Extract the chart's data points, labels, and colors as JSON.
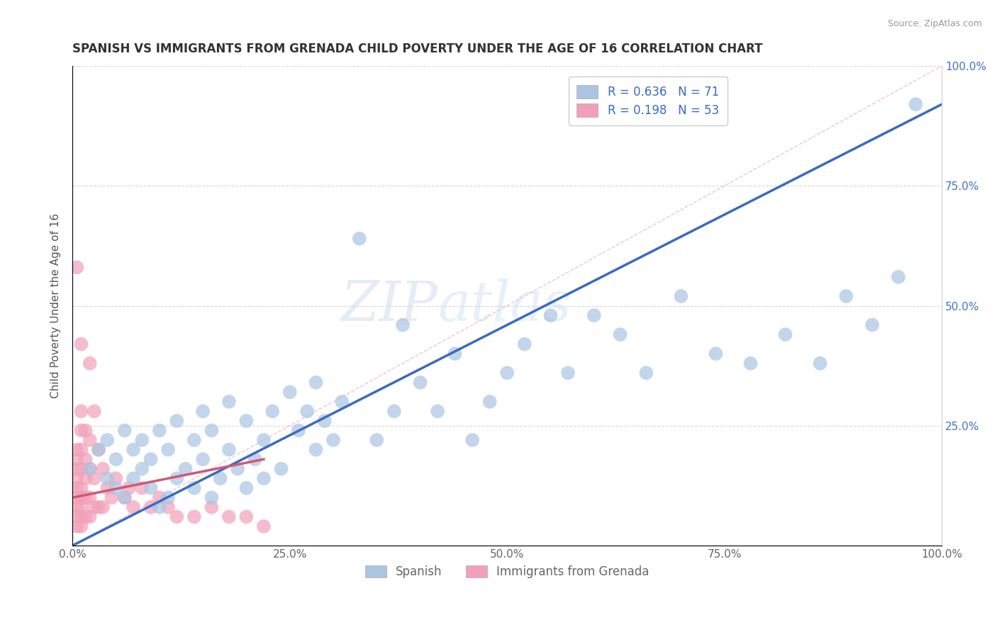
{
  "title": "SPANISH VS IMMIGRANTS FROM GRENADA CHILD POVERTY UNDER THE AGE OF 16 CORRELATION CHART",
  "source": "Source: ZipAtlas.com",
  "ylabel": "Child Poverty Under the Age of 16",
  "xlim": [
    0.0,
    1.0
  ],
  "ylim": [
    0.0,
    1.0
  ],
  "xtick_labels": [
    "0.0%",
    "25.0%",
    "50.0%",
    "75.0%",
    "100.0%"
  ],
  "xtick_vals": [
    0.0,
    0.25,
    0.5,
    0.75,
    1.0
  ],
  "ytick_labels": [
    "100.0%",
    "75.0%",
    "50.0%",
    "25.0%",
    ""
  ],
  "ytick_vals": [
    1.0,
    0.75,
    0.5,
    0.25,
    0.0
  ],
  "watermark_zip": "ZIP",
  "watermark_atlas": "atlas",
  "legend_blue_label_r": "R = 0.636",
  "legend_blue_label_n": "N = 71",
  "legend_pink_label_r": "R = 0.198",
  "legend_pink_label_n": "N = 53",
  "blue_color": "#aac4e2",
  "pink_color": "#f2a0b8",
  "blue_line_color": "#3a6bbf",
  "pink_line_color": "#d05878",
  "diag_line_color": "#e8b8c8",
  "grid_color": "#d8d8d8",
  "background_color": "#ffffff",
  "blue_scatter_x": [
    0.02,
    0.03,
    0.04,
    0.04,
    0.05,
    0.05,
    0.06,
    0.06,
    0.07,
    0.07,
    0.08,
    0.08,
    0.09,
    0.09,
    0.1,
    0.1,
    0.11,
    0.11,
    0.12,
    0.12,
    0.13,
    0.14,
    0.14,
    0.15,
    0.15,
    0.16,
    0.16,
    0.17,
    0.18,
    0.18,
    0.19,
    0.2,
    0.2,
    0.21,
    0.22,
    0.22,
    0.23,
    0.24,
    0.25,
    0.26,
    0.27,
    0.28,
    0.28,
    0.29,
    0.3,
    0.31,
    0.33,
    0.35,
    0.37,
    0.38,
    0.4,
    0.42,
    0.44,
    0.46,
    0.48,
    0.5,
    0.52,
    0.55,
    0.57,
    0.6,
    0.63,
    0.66,
    0.7,
    0.74,
    0.78,
    0.82,
    0.86,
    0.89,
    0.92,
    0.95,
    0.97
  ],
  "blue_scatter_y": [
    0.16,
    0.2,
    0.14,
    0.22,
    0.12,
    0.18,
    0.1,
    0.24,
    0.14,
    0.2,
    0.16,
    0.22,
    0.12,
    0.18,
    0.08,
    0.24,
    0.1,
    0.2,
    0.14,
    0.26,
    0.16,
    0.12,
    0.22,
    0.28,
    0.18,
    0.1,
    0.24,
    0.14,
    0.2,
    0.3,
    0.16,
    0.12,
    0.26,
    0.18,
    0.22,
    0.14,
    0.28,
    0.16,
    0.32,
    0.24,
    0.28,
    0.2,
    0.34,
    0.26,
    0.22,
    0.3,
    0.64,
    0.22,
    0.28,
    0.46,
    0.34,
    0.28,
    0.4,
    0.22,
    0.3,
    0.36,
    0.42,
    0.48,
    0.36,
    0.48,
    0.44,
    0.36,
    0.52,
    0.4,
    0.38,
    0.44,
    0.38,
    0.52,
    0.46,
    0.56,
    0.92
  ],
  "pink_scatter_x": [
    0.005,
    0.005,
    0.005,
    0.005,
    0.005,
    0.005,
    0.005,
    0.005,
    0.005,
    0.005,
    0.01,
    0.01,
    0.01,
    0.01,
    0.01,
    0.01,
    0.01,
    0.01,
    0.01,
    0.01,
    0.015,
    0.015,
    0.015,
    0.015,
    0.015,
    0.02,
    0.02,
    0.02,
    0.02,
    0.02,
    0.025,
    0.025,
    0.025,
    0.03,
    0.03,
    0.035,
    0.035,
    0.04,
    0.045,
    0.05,
    0.06,
    0.065,
    0.07,
    0.08,
    0.09,
    0.1,
    0.11,
    0.12,
    0.14,
    0.16,
    0.18,
    0.2,
    0.22
  ],
  "pink_scatter_y": [
    0.04,
    0.06,
    0.08,
    0.1,
    0.12,
    0.14,
    0.16,
    0.18,
    0.2,
    0.58,
    0.04,
    0.06,
    0.08,
    0.1,
    0.12,
    0.16,
    0.2,
    0.24,
    0.28,
    0.42,
    0.06,
    0.1,
    0.14,
    0.18,
    0.24,
    0.06,
    0.1,
    0.16,
    0.22,
    0.38,
    0.08,
    0.14,
    0.28,
    0.08,
    0.2,
    0.08,
    0.16,
    0.12,
    0.1,
    0.14,
    0.1,
    0.12,
    0.08,
    0.12,
    0.08,
    0.1,
    0.08,
    0.06,
    0.06,
    0.08,
    0.06,
    0.06,
    0.04
  ],
  "blue_line_x0": 0.0,
  "blue_line_y0": 0.0,
  "blue_line_x1": 1.0,
  "blue_line_y1": 0.92,
  "pink_line_x0": 0.0,
  "pink_line_y0": 0.1,
  "pink_line_x1": 0.22,
  "pink_line_y1": 0.18
}
